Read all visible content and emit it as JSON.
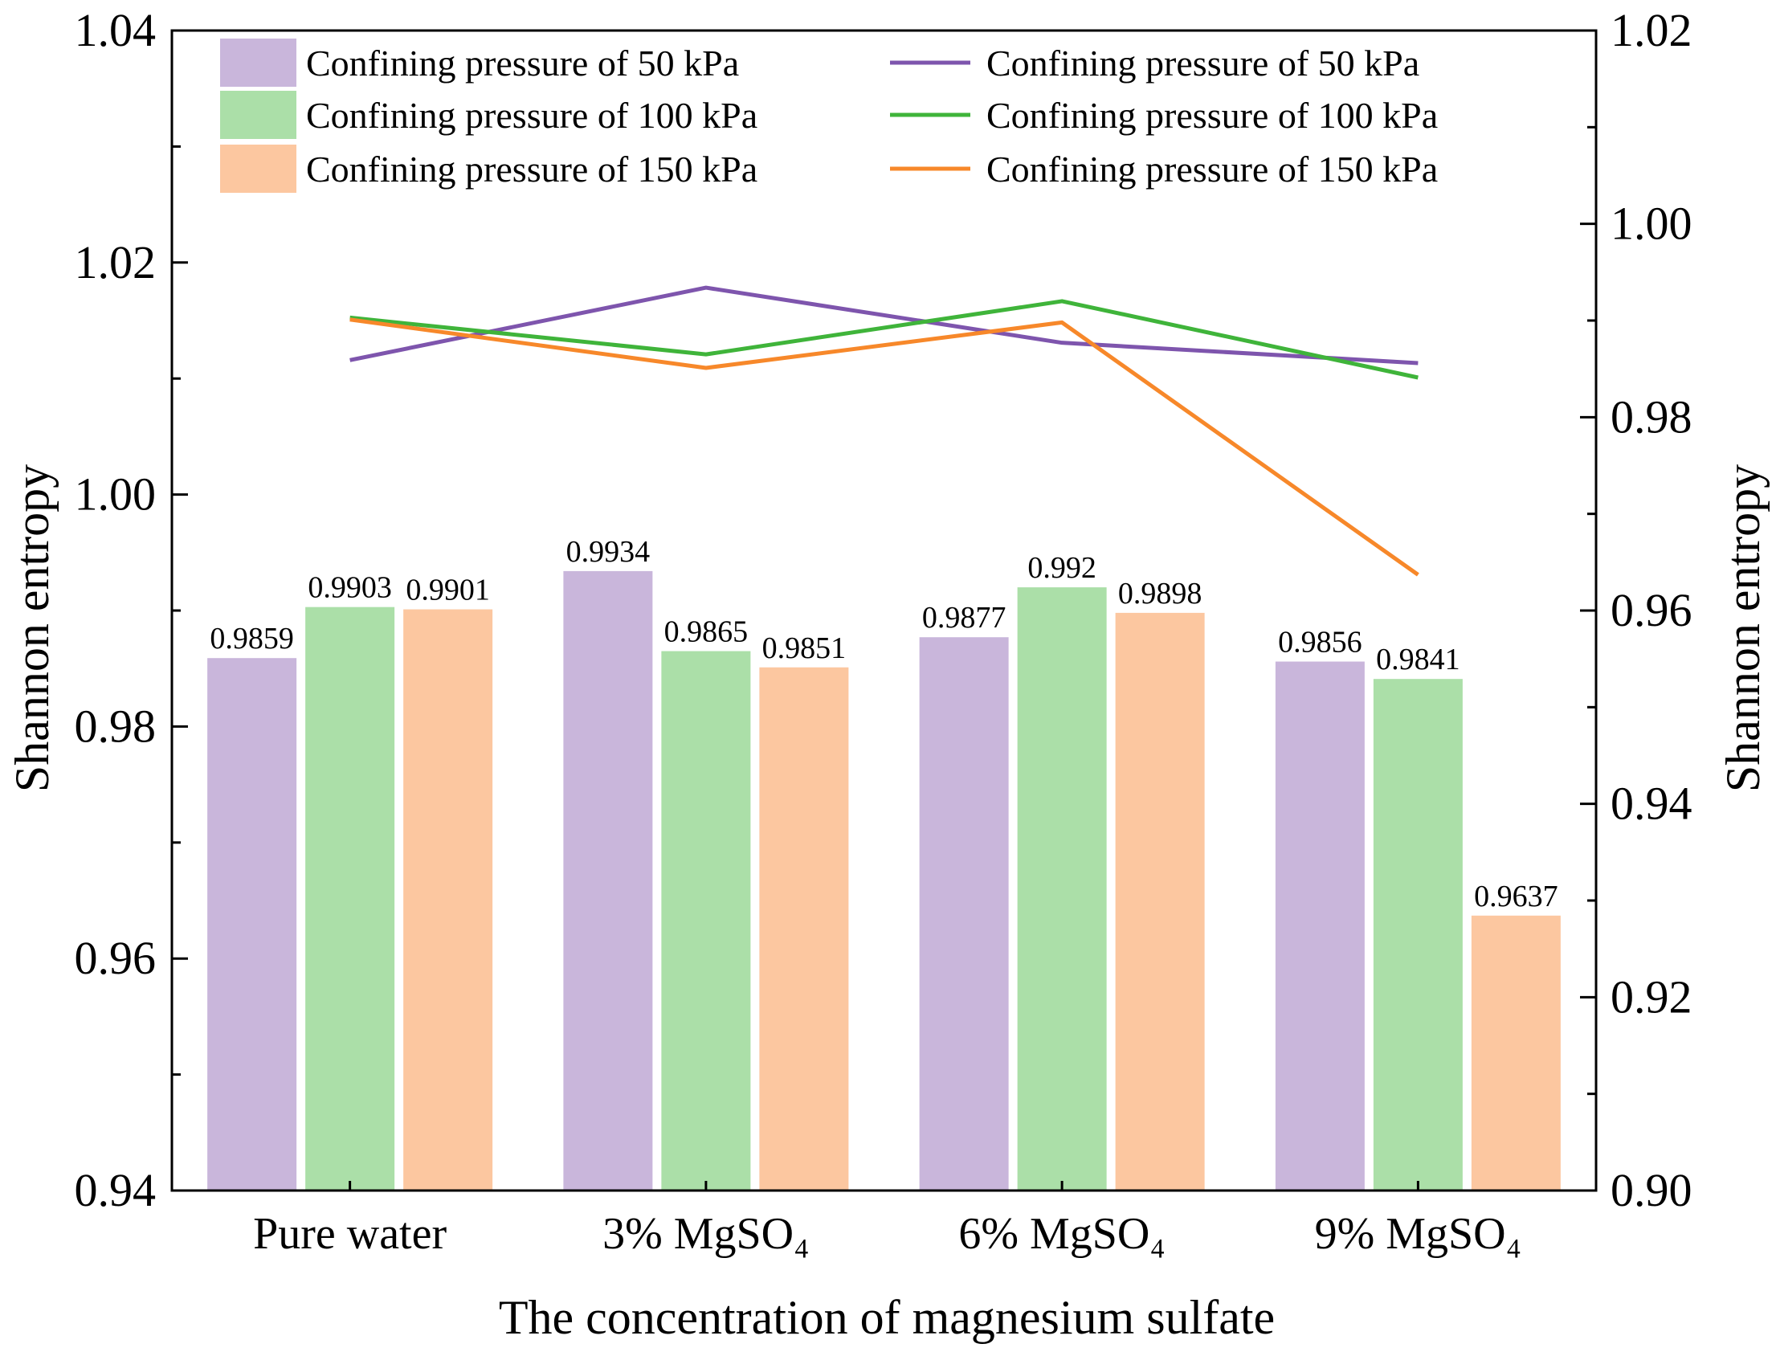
{
  "chart_data": {
    "type": "bar",
    "title": "",
    "xlabel": "The concentration of magnesium sulfate",
    "ylabel": "Shannon entropy",
    "y2label": "Shannon entropy",
    "categories": [
      "Pure water",
      "3% MgSO₄",
      "6% MgSO₄",
      "9% MgSO₄"
    ],
    "ylim": [
      0.94,
      1.04
    ],
    "yticks": [
      0.94,
      0.96,
      0.98,
      1.0,
      1.02,
      1.04
    ],
    "ytick_labels": [
      "0.94",
      "0.96",
      "0.98",
      "1.00",
      "1.02",
      "1.04"
    ],
    "y2lim": [
      0.9,
      1.02
    ],
    "y2ticks": [
      0.9,
      0.92,
      0.94,
      0.96,
      0.98,
      1.0,
      1.02
    ],
    "y2tick_labels": [
      "0.90",
      "0.92",
      "0.94",
      "0.96",
      "0.98",
      "1.00",
      "1.02"
    ],
    "grid": false,
    "legend_position": "top",
    "bar_series": [
      {
        "name": "Confining pressure of 50 kPa",
        "color": "#c9b6db",
        "values": [
          0.9859,
          0.9934,
          0.9877,
          0.9856
        ],
        "labels": [
          "0.9859",
          "0.9934",
          "0.9877",
          "0.9856"
        ]
      },
      {
        "name": "Confining pressure of 100 kPa",
        "color": "#abdfa8",
        "values": [
          0.9903,
          0.9865,
          0.992,
          0.9841
        ],
        "labels": [
          "0.9903",
          "0.9865",
          "0.992",
          "0.9841"
        ]
      },
      {
        "name": "Confining pressure of 150 kPa",
        "color": "#fcc7a0",
        "values": [
          0.9901,
          0.9851,
          0.9898,
          0.9637
        ],
        "labels": [
          "0.9901",
          "0.9851",
          "0.9898",
          "0.9637"
        ]
      }
    ],
    "line_series": [
      {
        "name": "Confining pressure of 50 kPa",
        "color": "#7e55ad",
        "axis": "right",
        "values": [
          0.9859,
          0.9934,
          0.9877,
          0.9856
        ]
      },
      {
        "name": "Confining pressure of 100 kPa",
        "color": "#3fb43a",
        "axis": "right",
        "values": [
          0.9903,
          0.9865,
          0.992,
          0.9841
        ]
      },
      {
        "name": "Confining pressure of 150 kPa",
        "color": "#f7882a",
        "axis": "right",
        "values": [
          0.9901,
          0.9851,
          0.9898,
          0.9637
        ]
      }
    ]
  }
}
